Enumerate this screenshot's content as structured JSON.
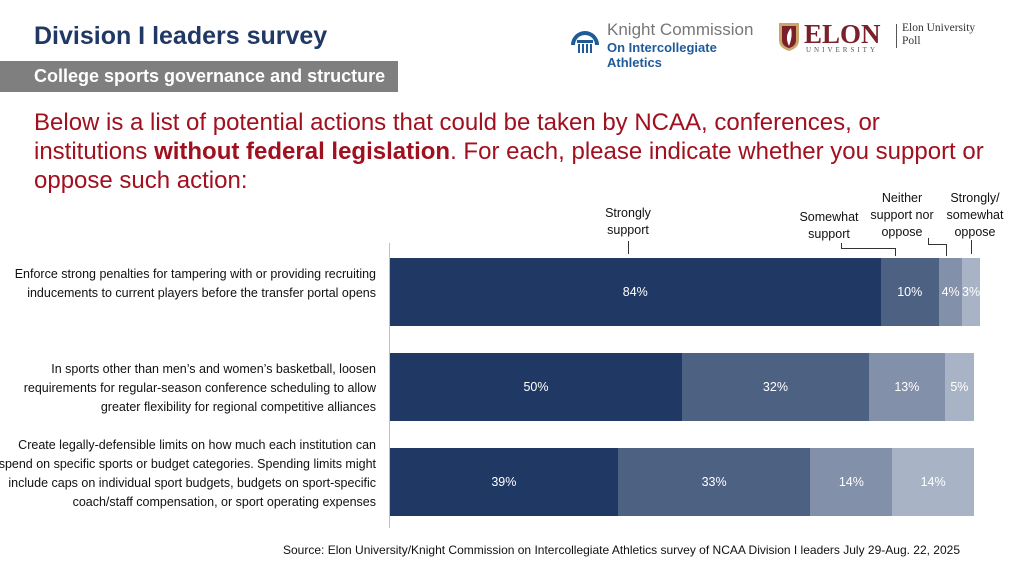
{
  "header": {
    "title": "Division I leaders survey",
    "subtitle": "College sports governance and structure"
  },
  "logos": {
    "knight": {
      "line1": "Knight Commission",
      "line2": "On Intercollegiate Athletics"
    },
    "elon": {
      "name": "ELON",
      "sub": "UNIVERSITY",
      "poll1": "Elon University",
      "poll2": "Poll"
    }
  },
  "question": {
    "part1": "Below is a list of potential actions that could be taken by NCAA, conferences, or institutions ",
    "bold": "without federal legislation",
    "part2": ". For each, please indicate whether you support or oppose such action:"
  },
  "chart_data": {
    "type": "bar",
    "orientation": "horizontal",
    "stacked": true,
    "xlim": [
      0,
      100
    ],
    "categories": [
      "Enforce strong penalties for tampering with or providing recruiting inducements to current players before the transfer portal opens",
      "In sports other than men’s and women’s basketball, loosen requirements for regular-season conference scheduling to allow greater flexibility for regional competitive alliances",
      "Create legally-defensible limits on how much each institution can spend on specific sports or budget categories. Spending limits might include caps on individual sport budgets, budgets on sport-specific coach/staff compensation, or sport operating expenses"
    ],
    "series": [
      {
        "name": "Strongly support",
        "color": "#203864",
        "values": [
          84,
          50,
          39
        ]
      },
      {
        "name": "Somewhat support",
        "color": "#4d6183",
        "values": [
          10,
          32,
          33
        ]
      },
      {
        "name": "Neither support nor oppose",
        "color": "#8390a9",
        "values": [
          4,
          13,
          14
        ]
      },
      {
        "name": "Strongly/ somewhat oppose",
        "color": "#a9b3c6",
        "values": [
          3,
          5,
          14
        ]
      }
    ],
    "legend_labels": [
      "Strongly support",
      "Somewhat support",
      "Neither support nor oppose",
      "Strongly/ somewhat oppose"
    ]
  },
  "source": "Source: Elon University/Knight Commission on Intercollegiate Athletics survey of NCAA Division I leaders July 29-Aug. 22, 2025"
}
